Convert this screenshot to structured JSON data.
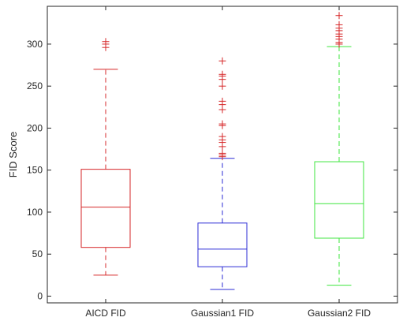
{
  "chart_data": {
    "type": "box",
    "title": "",
    "xlabel": "",
    "ylabel": "FID Score",
    "ylim": [
      -8,
      345
    ],
    "yticks": [
      0,
      50,
      100,
      150,
      200,
      250,
      300
    ],
    "grid": false,
    "categories": [
      "AICD FID",
      "Gaussian1 FID",
      "Gaussian2 FID"
    ],
    "series": [
      {
        "category": "AICD FID",
        "color": "#d62728",
        "whisker_low": 25,
        "q1": 58,
        "median": 106,
        "q3": 151,
        "whisker_high": 270,
        "outliers": [
          296,
          300,
          303
        ]
      },
      {
        "category": "Gaussian1 FID",
        "color": "#2b2bd6",
        "whisker_low": 8,
        "q1": 35,
        "median": 56,
        "q3": 87,
        "whisker_high": 164,
        "outliers": [
          166,
          168,
          170,
          178,
          183,
          186,
          190,
          203,
          205,
          222,
          228,
          232,
          250,
          258,
          262,
          264,
          280
        ]
      },
      {
        "category": "Gaussian2 FID",
        "color": "#3ee63e",
        "whisker_low": 13,
        "q1": 69,
        "median": 110,
        "q3": 160,
        "whisker_high": 297,
        "outliers": [
          300,
          302,
          306,
          309,
          312,
          316,
          319,
          323,
          334
        ]
      }
    ],
    "outlier_color": "#d62728",
    "outlier_marker": "plus"
  }
}
